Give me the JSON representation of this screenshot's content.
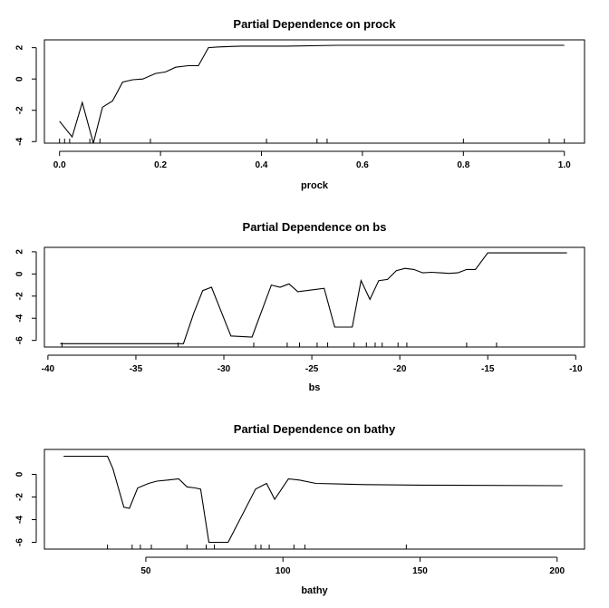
{
  "chart_data": [
    {
      "type": "line",
      "title": "Partial Dependence on prock",
      "xlabel": "prock",
      "ylabel": "",
      "xlim": [
        -0.03,
        1.04
      ],
      "ylim": [
        -4.1,
        2.5
      ],
      "xticks": [
        0.0,
        0.2,
        0.4,
        0.6,
        0.8,
        1.0
      ],
      "xtick_labels": [
        "0.0",
        "0.2",
        "0.4",
        "0.6",
        "0.8",
        "1.0"
      ],
      "yticks": [
        -4,
        -2,
        0,
        2
      ],
      "ytick_labels": [
        "-4",
        "-2",
        "0",
        "2"
      ],
      "rug": [
        0.0,
        0.01,
        0.02,
        0.06,
        0.08,
        0.18,
        0.41,
        0.51,
        0.53,
        0.8,
        0.97,
        1.0
      ],
      "series": [
        {
          "name": "partial dependence",
          "x": [
            0.0,
            0.025,
            0.045,
            0.067,
            0.085,
            0.105,
            0.125,
            0.145,
            0.165,
            0.19,
            0.21,
            0.23,
            0.255,
            0.275,
            0.295,
            0.315,
            0.36,
            0.45,
            0.55,
            1.0
          ],
          "y": [
            -2.7,
            -3.7,
            -1.5,
            -4.1,
            -1.8,
            -1.4,
            -0.2,
            -0.05,
            0.0,
            0.35,
            0.45,
            0.75,
            0.85,
            0.85,
            2.0,
            2.05,
            2.1,
            2.1,
            2.15,
            2.15
          ]
        }
      ]
    },
    {
      "type": "line",
      "title": "Partial Dependence on bs",
      "xlabel": "bs",
      "ylabel": "",
      "xlim": [
        -40.2,
        -9.5
      ],
      "ylim": [
        -6.6,
        2.4
      ],
      "xticks": [
        -40,
        -35,
        -30,
        -25,
        -20,
        -15,
        -10
      ],
      "xtick_labels": [
        "-40",
        "-35",
        "-30",
        "-25",
        "-20",
        "-15",
        "-10"
      ],
      "yticks": [
        -6,
        -4,
        -2,
        0,
        2
      ],
      "ytick_labels": [
        "-6",
        "-4",
        "-2",
        "0",
        "2"
      ],
      "rug": [
        -39.2,
        -32.6,
        -28.3,
        -26.4,
        -25.7,
        -24.7,
        -24.1,
        -22.6,
        -21.9,
        -21.4,
        -21.0,
        -20.1,
        -19.6,
        -16.2,
        -14.5
      ],
      "series": [
        {
          "name": "partial dependence",
          "x": [
            -39.3,
            -32.3,
            -31.7,
            -31.2,
            -30.7,
            -30.2,
            -29.6,
            -28.4,
            -27.3,
            -26.8,
            -26.3,
            -25.8,
            -25.3,
            -24.3,
            -23.7,
            -22.7,
            -22.2,
            -21.7,
            -21.2,
            -20.7,
            -20.2,
            -19.7,
            -19.2,
            -18.7,
            -18.2,
            -17.7,
            -17.2,
            -16.7,
            -16.2,
            -15.7,
            -15.0,
            -14.6,
            -10.5
          ],
          "y": [
            -6.3,
            -6.3,
            -3.5,
            -1.5,
            -1.2,
            -3.2,
            -5.6,
            -5.7,
            -1.0,
            -1.2,
            -0.9,
            -1.6,
            -1.5,
            -1.3,
            -4.8,
            -4.8,
            -0.6,
            -2.3,
            -0.6,
            -0.5,
            0.3,
            0.5,
            0.4,
            0.1,
            0.15,
            0.1,
            0.05,
            0.1,
            0.4,
            0.4,
            1.9,
            1.9,
            1.9
          ]
        }
      ]
    },
    {
      "type": "line",
      "title": "Partial Dependence on bathy",
      "xlabel": "bathy",
      "ylabel": "",
      "xlim": [
        13,
        210
      ],
      "ylim": [
        -6.6,
        2.2
      ],
      "xticks": [
        50,
        100,
        150,
        200
      ],
      "xtick_labels": [
        "50",
        "100",
        "150",
        "200"
      ],
      "yticks": [
        -6,
        -4,
        -2,
        0
      ],
      "ytick_labels": [
        "-6",
        "-4",
        "-2",
        "0"
      ],
      "rug": [
        36,
        45,
        48,
        52,
        65,
        72,
        75,
        90,
        92,
        95,
        104,
        108,
        145
      ],
      "series": [
        {
          "name": "partial dependence",
          "x": [
            20,
            36,
            38,
            42,
            44,
            47,
            51,
            54,
            58,
            62,
            65,
            68,
            70,
            73,
            76,
            80,
            90,
            94,
            97,
            102,
            106,
            112,
            120,
            130,
            150,
            202
          ],
          "y": [
            1.6,
            1.6,
            0.5,
            -2.9,
            -3.0,
            -1.2,
            -0.8,
            -0.6,
            -0.5,
            -0.4,
            -1.1,
            -1.2,
            -1.3,
            -6.0,
            -6.0,
            -6.0,
            -1.3,
            -0.8,
            -2.2,
            -0.4,
            -0.5,
            -0.8,
            -0.85,
            -0.9,
            -0.95,
            -1.0
          ]
        }
      ]
    }
  ]
}
